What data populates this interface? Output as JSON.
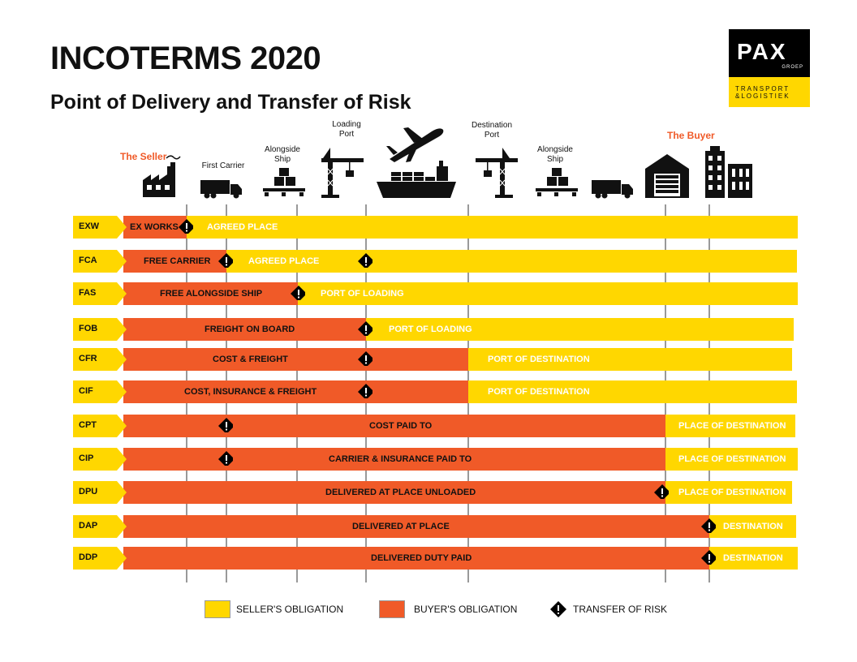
{
  "header": {
    "title": "INCOTERMS 2020",
    "subtitle": "Point of Delivery and Transfer of Risk"
  },
  "logo": {
    "brand": "PAX",
    "group": "GROEP",
    "line1": "TRANSPORT",
    "line2": "&LOGISTIEK"
  },
  "stages": {
    "seller": "The Seller",
    "first_carrier": "First Carrier",
    "alongside_ship_1a": "Alongside",
    "alongside_ship_1b": "Ship",
    "loading_port_a": "Loading",
    "loading_port_b": "Port",
    "destination_port_a": "Destination",
    "destination_port_b": "Port",
    "alongside_ship_2a": "Alongside",
    "alongside_ship_2b": "Ship",
    "buyer": "The Buyer"
  },
  "rows": [
    {
      "code": "EXW",
      "seller_label": "EX WORKS",
      "buyer_label": "AGREED PLACE"
    },
    {
      "code": "FCA",
      "seller_label": "FREE CARRIER",
      "buyer_label": "AGREED PLACE"
    },
    {
      "code": "FAS",
      "seller_label": "FREE ALONGSIDE SHIP",
      "buyer_label": "PORT OF LOADING"
    },
    {
      "code": "FOB",
      "seller_label": "FREIGHT ON BOARD",
      "buyer_label": "PORT OF LOADING"
    },
    {
      "code": "CFR",
      "seller_label": "COST & FREIGHT",
      "buyer_label": "PORT OF DESTINATION"
    },
    {
      "code": "CIF",
      "seller_label": "COST, INSURANCE & FREIGHT",
      "buyer_label": "PORT OF DESTINATION"
    },
    {
      "code": "CPT",
      "seller_label": "COST PAID TO",
      "buyer_label": "PLACE OF DESTINATION"
    },
    {
      "code": "CIP",
      "seller_label": "CARRIER & INSURANCE PAID TO",
      "buyer_label": "PLACE OF DESTINATION"
    },
    {
      "code": "DPU",
      "seller_label": "DELIVERED AT PLACE UNLOADED",
      "buyer_label": "PLACE OF DESTINATION"
    },
    {
      "code": "DAP",
      "seller_label": "DELIVERED AT PLACE",
      "buyer_label": "DESTINATION"
    },
    {
      "code": "DDP",
      "seller_label": "DELIVERED DUTY PAID",
      "buyer_label": "DESTINATION"
    }
  ],
  "legend": {
    "seller": "SELLER'S OBLIGATION",
    "buyer": "BUYER'S OBLIGATION",
    "risk": "TRANSFER OF RISK",
    "seller_color": "#ffd700",
    "buyer_color": "#f05a28",
    "risk_color": "#000000"
  },
  "icons": [
    "factory-icon",
    "truck-icon",
    "pallet-boxes-icon",
    "crane-icon",
    "airplane-icon",
    "cargo-ship-icon",
    "crane-icon",
    "pallet-boxes-icon",
    "truck-icon",
    "warehouse-icon",
    "buildings-icon"
  ]
}
